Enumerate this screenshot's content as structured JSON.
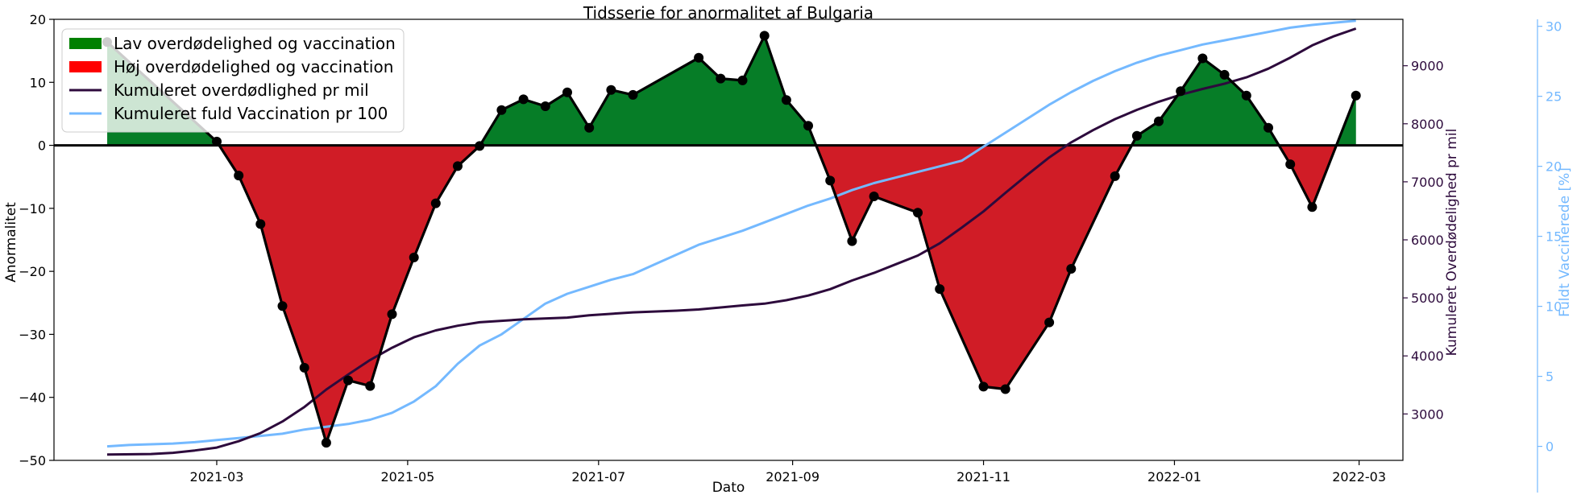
{
  "chart_data": {
    "type": "line",
    "title": "Tidsserie for anormalitet af Bulgaria",
    "xlabel": "Dato",
    "ylabel_left": "Anormalitet",
    "ylabel_right": "Kumuleret Overdødelighed pr mil",
    "ylabel_right2": "Fuldt Vaccinerede [%]",
    "x_ticks": [
      "2021-03",
      "2021-05",
      "2021-07",
      "2021-09",
      "2021-11",
      "2022-01",
      "2022-03"
    ],
    "y_left_ticks": [
      20,
      10,
      0,
      -10,
      -20,
      -30,
      -40,
      -50
    ],
    "y_right_ticks": [
      3000,
      4000,
      5000,
      6000,
      7000,
      8000,
      9000
    ],
    "y_right2_ticks": [
      0,
      5,
      10,
      15,
      20,
      25,
      30
    ],
    "ylim_left": [
      -50,
      20
    ],
    "ylim_right": [
      2200,
      9800
    ],
    "ylim_right2": [
      -1.0,
      30.5
    ],
    "legend": {
      "position": "upper-left",
      "entries": [
        {
          "label": "Lav overdødelighed og vaccination",
          "kind": "patch",
          "color": "#008000"
        },
        {
          "label": "Høj overdødelighed og vaccination",
          "kind": "patch",
          "color": "#ff0000"
        },
        {
          "label": "Kumuleret overdødlighed pr mil",
          "kind": "line",
          "color": "#2d0a3c"
        },
        {
          "label": "Kumuleret fuld Vaccination pr 100",
          "kind": "line",
          "color": "#74b9ff"
        }
      ]
    },
    "colors": {
      "positive_fill": "#067d27",
      "negative_fill": "#d01c26",
      "anomaly_line": "#000000",
      "excess_line": "#2d0a3c",
      "vaccination_line": "#74b9ff",
      "right_axis": "#2d0a3c",
      "right2_axis": "#74b9ff"
    },
    "series": [
      {
        "name": "Anormalitet",
        "axis": "left",
        "points": [
          [
            "2021-01-25",
            16.4
          ],
          [
            "2021-03-01",
            0.6
          ],
          [
            "2021-03-08",
            -4.8
          ],
          [
            "2021-03-15",
            -12.5
          ],
          [
            "2021-03-22",
            -25.5
          ],
          [
            "2021-03-29",
            -35.3
          ],
          [
            "2021-04-05",
            -47.2
          ],
          [
            "2021-04-12",
            -37.3
          ],
          [
            "2021-04-19",
            -38.2
          ],
          [
            "2021-04-26",
            -26.8
          ],
          [
            "2021-05-03",
            -17.8
          ],
          [
            "2021-05-10",
            -9.2
          ],
          [
            "2021-05-17",
            -3.3
          ],
          [
            "2021-05-24",
            -0.1
          ],
          [
            "2021-05-31",
            5.6
          ],
          [
            "2021-06-07",
            7.3
          ],
          [
            "2021-06-14",
            6.2
          ],
          [
            "2021-06-21",
            8.4
          ],
          [
            "2021-06-28",
            2.8
          ],
          [
            "2021-07-05",
            8.8
          ],
          [
            "2021-07-12",
            8.0
          ],
          [
            "2021-08-02",
            13.9
          ],
          [
            "2021-08-09",
            10.6
          ],
          [
            "2021-08-16",
            10.3
          ],
          [
            "2021-08-23",
            17.4
          ],
          [
            "2021-08-30",
            7.2
          ],
          [
            "2021-09-06",
            3.1
          ],
          [
            "2021-09-13",
            -5.6
          ],
          [
            "2021-09-20",
            -15.2
          ],
          [
            "2021-09-27",
            -8.1
          ],
          [
            "2021-10-11",
            -10.7
          ],
          [
            "2021-10-18",
            -22.8
          ],
          [
            "2021-11-01",
            -38.3
          ],
          [
            "2021-11-08",
            -38.7
          ],
          [
            "2021-11-22",
            -28.1
          ],
          [
            "2021-11-29",
            -19.6
          ],
          [
            "2021-12-13",
            -4.9
          ],
          [
            "2021-12-20",
            1.5
          ],
          [
            "2021-12-27",
            3.8
          ],
          [
            "2022-01-03",
            8.6
          ],
          [
            "2022-01-10",
            13.8
          ],
          [
            "2022-01-17",
            11.2
          ],
          [
            "2022-01-24",
            7.9
          ],
          [
            "2022-01-31",
            2.8
          ],
          [
            "2022-02-07",
            -3.0
          ],
          [
            "2022-02-14",
            -9.8
          ],
          [
            "2022-02-28",
            7.9
          ]
        ]
      },
      {
        "name": "Kumuleret overdødlighed pr mil",
        "axis": "right",
        "points": [
          [
            "2021-01-25",
            2300
          ],
          [
            "2021-02-08",
            2310
          ],
          [
            "2021-02-15",
            2330
          ],
          [
            "2021-02-22",
            2370
          ],
          [
            "2021-03-01",
            2420
          ],
          [
            "2021-03-08",
            2530
          ],
          [
            "2021-03-15",
            2670
          ],
          [
            "2021-03-22",
            2870
          ],
          [
            "2021-03-29",
            3120
          ],
          [
            "2021-04-05",
            3420
          ],
          [
            "2021-04-12",
            3680
          ],
          [
            "2021-04-19",
            3930
          ],
          [
            "2021-04-26",
            4140
          ],
          [
            "2021-05-03",
            4320
          ],
          [
            "2021-05-10",
            4440
          ],
          [
            "2021-05-17",
            4520
          ],
          [
            "2021-05-24",
            4580
          ],
          [
            "2021-06-07",
            4630
          ],
          [
            "2021-06-21",
            4660
          ],
          [
            "2021-06-28",
            4700
          ],
          [
            "2021-07-12",
            4750
          ],
          [
            "2021-07-26",
            4780
          ],
          [
            "2021-08-02",
            4800
          ],
          [
            "2021-08-16",
            4870
          ],
          [
            "2021-08-23",
            4900
          ],
          [
            "2021-08-30",
            4960
          ],
          [
            "2021-09-06",
            5040
          ],
          [
            "2021-09-13",
            5150
          ],
          [
            "2021-09-20",
            5300
          ],
          [
            "2021-09-27",
            5430
          ],
          [
            "2021-10-04",
            5580
          ],
          [
            "2021-10-11",
            5730
          ],
          [
            "2021-10-18",
            5940
          ],
          [
            "2021-10-25",
            6210
          ],
          [
            "2021-11-01",
            6490
          ],
          [
            "2021-11-08",
            6810
          ],
          [
            "2021-11-15",
            7120
          ],
          [
            "2021-11-22",
            7420
          ],
          [
            "2021-11-29",
            7680
          ],
          [
            "2021-12-06",
            7890
          ],
          [
            "2021-12-13",
            8080
          ],
          [
            "2021-12-20",
            8240
          ],
          [
            "2021-12-27",
            8380
          ],
          [
            "2022-01-03",
            8500
          ],
          [
            "2022-01-10",
            8600
          ],
          [
            "2022-01-17",
            8690
          ],
          [
            "2022-01-24",
            8800
          ],
          [
            "2022-01-31",
            8950
          ],
          [
            "2022-02-07",
            9140
          ],
          [
            "2022-02-14",
            9350
          ],
          [
            "2022-02-21",
            9510
          ],
          [
            "2022-02-28",
            9640
          ]
        ]
      },
      {
        "name": "Kumuleret fuld Vaccination pr 100",
        "axis": "right2",
        "points": [
          [
            "2021-01-25",
            0.0
          ],
          [
            "2021-02-01",
            0.1
          ],
          [
            "2021-02-08",
            0.15
          ],
          [
            "2021-02-15",
            0.2
          ],
          [
            "2021-02-22",
            0.3
          ],
          [
            "2021-03-01",
            0.45
          ],
          [
            "2021-03-08",
            0.6
          ],
          [
            "2021-03-15",
            0.75
          ],
          [
            "2021-03-22",
            0.9
          ],
          [
            "2021-03-29",
            1.2
          ],
          [
            "2021-04-05",
            1.4
          ],
          [
            "2021-04-12",
            1.6
          ],
          [
            "2021-04-19",
            1.9
          ],
          [
            "2021-04-26",
            2.4
          ],
          [
            "2021-05-03",
            3.2
          ],
          [
            "2021-05-10",
            4.3
          ],
          [
            "2021-05-17",
            5.9
          ],
          [
            "2021-05-24",
            7.2
          ],
          [
            "2021-05-31",
            8.0
          ],
          [
            "2021-06-07",
            9.1
          ],
          [
            "2021-06-14",
            10.2
          ],
          [
            "2021-06-21",
            10.9
          ],
          [
            "2021-06-28",
            11.4
          ],
          [
            "2021-07-05",
            11.9
          ],
          [
            "2021-07-12",
            12.3
          ],
          [
            "2021-07-19",
            13.0
          ],
          [
            "2021-07-26",
            13.7
          ],
          [
            "2021-08-02",
            14.4
          ],
          [
            "2021-08-09",
            14.9
          ],
          [
            "2021-08-16",
            15.4
          ],
          [
            "2021-08-23",
            16.0
          ],
          [
            "2021-08-30",
            16.6
          ],
          [
            "2021-09-06",
            17.2
          ],
          [
            "2021-09-13",
            17.7
          ],
          [
            "2021-09-20",
            18.3
          ],
          [
            "2021-09-27",
            18.8
          ],
          [
            "2021-10-04",
            19.2
          ],
          [
            "2021-10-11",
            19.6
          ],
          [
            "2021-10-18",
            20.0
          ],
          [
            "2021-10-25",
            20.4
          ],
          [
            "2021-11-01",
            21.4
          ],
          [
            "2021-11-08",
            22.4
          ],
          [
            "2021-11-15",
            23.4
          ],
          [
            "2021-11-22",
            24.4
          ],
          [
            "2021-11-29",
            25.3
          ],
          [
            "2021-12-06",
            26.1
          ],
          [
            "2021-12-13",
            26.8
          ],
          [
            "2021-12-20",
            27.4
          ],
          [
            "2021-12-27",
            27.9
          ],
          [
            "2022-01-03",
            28.3
          ],
          [
            "2022-01-10",
            28.7
          ],
          [
            "2022-01-17",
            29.0
          ],
          [
            "2022-01-24",
            29.3
          ],
          [
            "2022-01-31",
            29.6
          ],
          [
            "2022-02-07",
            29.9
          ],
          [
            "2022-02-14",
            30.1
          ],
          [
            "2022-02-21",
            30.25
          ],
          [
            "2022-02-28",
            30.4
          ]
        ]
      }
    ]
  }
}
